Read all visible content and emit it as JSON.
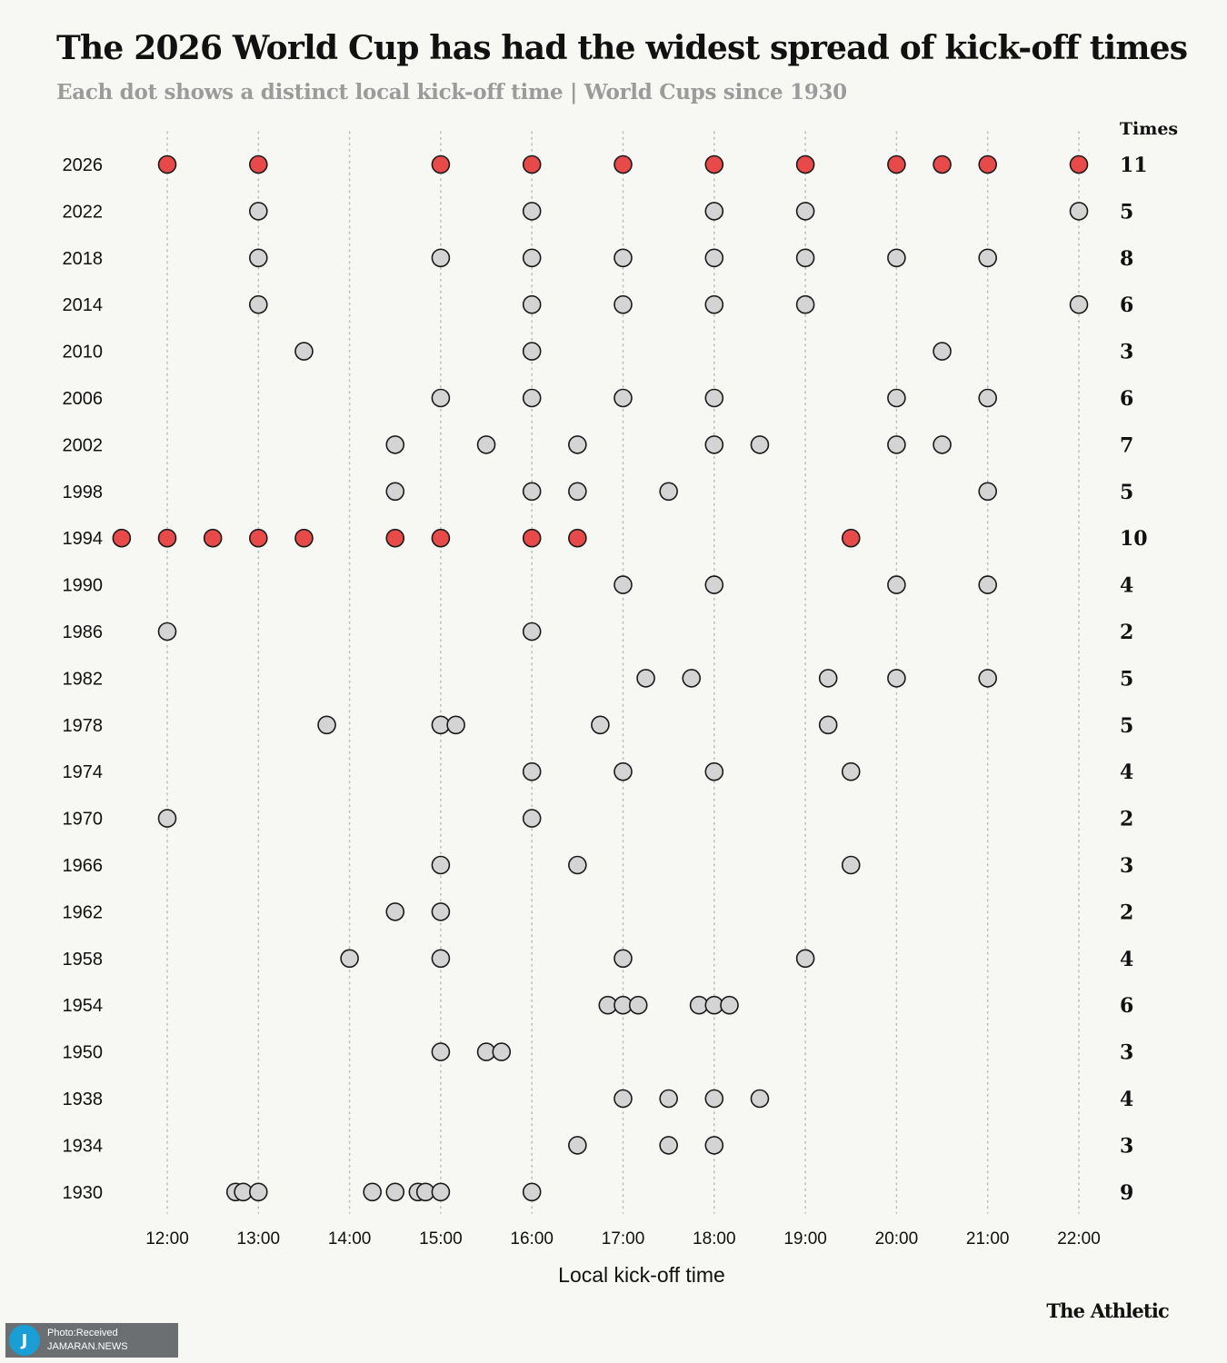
{
  "title": "The 2026 World Cup has had the widest spread of kick-off times",
  "subtitle": "Each dot shows a distinct local kick-off time | World Cups since 1930",
  "brand": "The Athletic",
  "credit": {
    "line1": "Photo:Received",
    "line2": "JAMARAN.NEWS"
  },
  "colors": {
    "highlight": "#e84a4a",
    "dot": "#d4d4d4",
    "stroke": "#1a1a1a",
    "grid": "#bdbdbd",
    "background": "#f7f7f4"
  },
  "chart_data": {
    "type": "scatter",
    "title": "The 2026 World Cup has had the widest spread of kick-off times",
    "subtitle": "Each dot shows a distinct local kick-off time | World Cups since 1930",
    "xlabel": "Local kick-off time",
    "count_header": "Times",
    "xlim": [
      "11:30",
      "22:00"
    ],
    "x_ticks": [
      "12:00",
      "13:00",
      "14:00",
      "15:00",
      "16:00",
      "17:00",
      "18:00",
      "19:00",
      "20:00",
      "21:00",
      "22:00"
    ],
    "grid": "vertical dotted lines at each hour",
    "rows": [
      {
        "year": "2026",
        "count": "11",
        "highlight": true,
        "times": [
          "12:00",
          "13:00",
          "15:00",
          "16:00",
          "17:00",
          "18:00",
          "19:00",
          "20:00",
          "20:30",
          "21:00",
          "22:00"
        ]
      },
      {
        "year": "2022",
        "count": "5",
        "highlight": false,
        "times": [
          "13:00",
          "16:00",
          "18:00",
          "19:00",
          "22:00"
        ]
      },
      {
        "year": "2018",
        "count": "8",
        "highlight": false,
        "times": [
          "13:00",
          "15:00",
          "16:00",
          "17:00",
          "18:00",
          "19:00",
          "20:00",
          "21:00"
        ]
      },
      {
        "year": "2014",
        "count": "6",
        "highlight": false,
        "times": [
          "13:00",
          "16:00",
          "17:00",
          "18:00",
          "19:00",
          "22:00"
        ]
      },
      {
        "year": "2010",
        "count": "3",
        "highlight": false,
        "times": [
          "13:30",
          "16:00",
          "20:30"
        ]
      },
      {
        "year": "2006",
        "count": "6",
        "highlight": false,
        "times": [
          "15:00",
          "16:00",
          "17:00",
          "18:00",
          "20:00",
          "21:00"
        ]
      },
      {
        "year": "2002",
        "count": "7",
        "highlight": false,
        "times": [
          "14:30",
          "15:30",
          "16:30",
          "18:00",
          "18:30",
          "20:00",
          "20:30"
        ]
      },
      {
        "year": "1998",
        "count": "5",
        "highlight": false,
        "times": [
          "14:30",
          "16:00",
          "16:30",
          "17:30",
          "21:00"
        ]
      },
      {
        "year": "1994",
        "count": "10",
        "highlight": true,
        "times": [
          "11:30",
          "12:00",
          "12:30",
          "13:00",
          "13:30",
          "14:30",
          "15:00",
          "16:00",
          "16:30",
          "19:30"
        ]
      },
      {
        "year": "1990",
        "count": "4",
        "highlight": false,
        "times": [
          "17:00",
          "18:00",
          "20:00",
          "21:00"
        ]
      },
      {
        "year": "1986",
        "count": "2",
        "highlight": false,
        "times": [
          "12:00",
          "16:00"
        ]
      },
      {
        "year": "1982",
        "count": "5",
        "highlight": false,
        "times": [
          "17:15",
          "17:45",
          "19:15",
          "20:00",
          "21:00"
        ]
      },
      {
        "year": "1978",
        "count": "5",
        "highlight": false,
        "times": [
          "13:45",
          "15:00",
          "15:10",
          "16:45",
          "19:15"
        ]
      },
      {
        "year": "1974",
        "count": "4",
        "highlight": false,
        "times": [
          "16:00",
          "17:00",
          "18:00",
          "19:30"
        ]
      },
      {
        "year": "1970",
        "count": "2",
        "highlight": false,
        "times": [
          "12:00",
          "16:00"
        ]
      },
      {
        "year": "1966",
        "count": "3",
        "highlight": false,
        "times": [
          "15:00",
          "16:30",
          "19:30"
        ]
      },
      {
        "year": "1962",
        "count": "2",
        "highlight": false,
        "times": [
          "14:30",
          "15:00"
        ]
      },
      {
        "year": "1958",
        "count": "4",
        "highlight": false,
        "times": [
          "14:00",
          "15:00",
          "17:00",
          "19:00"
        ]
      },
      {
        "year": "1954",
        "count": "6",
        "highlight": false,
        "times": [
          "16:50",
          "17:00",
          "17:10",
          "17:50",
          "18:00",
          "18:10"
        ]
      },
      {
        "year": "1950",
        "count": "3",
        "highlight": false,
        "times": [
          "15:00",
          "15:30",
          "15:40"
        ]
      },
      {
        "year": "1938",
        "count": "4",
        "highlight": false,
        "times": [
          "17:00",
          "17:30",
          "18:00",
          "18:30"
        ]
      },
      {
        "year": "1934",
        "count": "3",
        "highlight": false,
        "times": [
          "16:30",
          "17:30",
          "18:00"
        ]
      },
      {
        "year": "1930",
        "count": "9",
        "highlight": false,
        "times": [
          "12:45",
          "12:50",
          "13:00",
          "14:15",
          "14:30",
          "14:45",
          "14:50",
          "15:00",
          "16:00"
        ]
      }
    ]
  }
}
